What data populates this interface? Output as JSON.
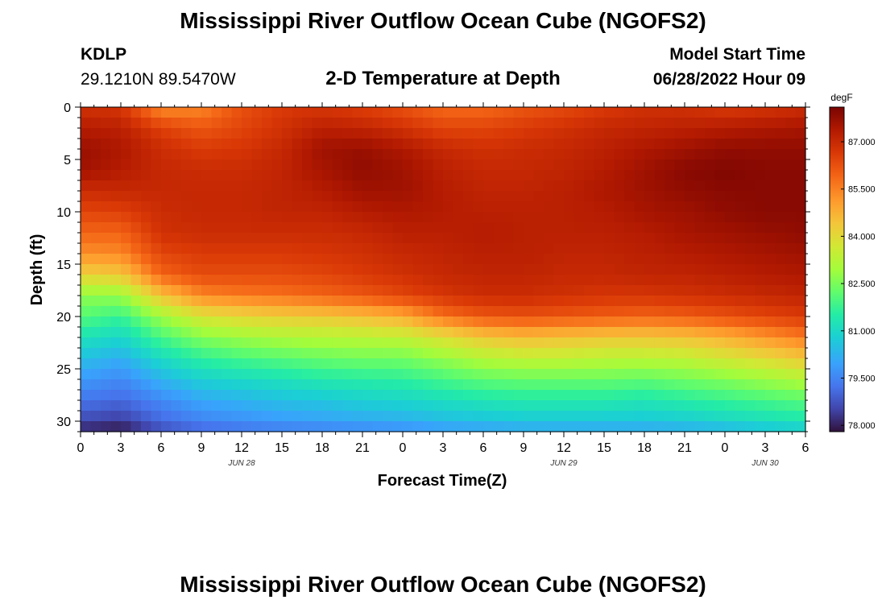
{
  "page_title": "Mississippi River Outflow Ocean Cube (NGOFS2)",
  "footer_title": "Mississippi River Outflow Ocean Cube (NGOFS2)",
  "station": {
    "name": "KDLP",
    "coords": "29.1210N  89.5470W"
  },
  "model": {
    "label": "Model Start Time",
    "value": "06/28/2022 Hour 09"
  },
  "chart_data": {
    "type": "heatmap",
    "title": "2-D Temperature at Depth",
    "xlabel": "Forecast Time(Z)",
    "ylabel": "Depth (ft)",
    "x_unit": "forecast hours from 06/28/2022 00Z",
    "xlim": [
      0,
      54
    ],
    "ylim": [
      0,
      31
    ],
    "y_inverted": true,
    "x_ticks": [
      0,
      3,
      6,
      9,
      12,
      15,
      18,
      21,
      24,
      27,
      30,
      33,
      36,
      39,
      42,
      45,
      48,
      51,
      54
    ],
    "x_tick_labels": [
      "0",
      "3",
      "6",
      "9",
      "12",
      "15",
      "18",
      "21",
      "0",
      "3",
      "6",
      "9",
      "12",
      "15",
      "18",
      "21",
      "0",
      "3",
      "6"
    ],
    "y_ticks": [
      0,
      5,
      10,
      15,
      20,
      25,
      30
    ],
    "y_tick_labels": [
      "0",
      "5",
      "10",
      "15",
      "20",
      "25",
      "30"
    ],
    "date_labels": [
      {
        "x": 12,
        "label": "JUN 28"
      },
      {
        "x": 36,
        "label": "JUN 29"
      },
      {
        "x": 51,
        "label": "JUN 30"
      }
    ],
    "colorbar": {
      "unit": "degF",
      "min": 77.8,
      "max": 88.1,
      "ticks": [
        78.0,
        79.5,
        81.0,
        82.5,
        84.0,
        85.5,
        87.0
      ],
      "tick_labels": [
        "78.000",
        "79.500",
        "81.000",
        "82.500",
        "84.000",
        "85.500",
        "87.000"
      ]
    },
    "time_hours": [
      0,
      3,
      6,
      9,
      12,
      15,
      18,
      21,
      24,
      27,
      30,
      33,
      36,
      39,
      42,
      45,
      48,
      51,
      54
    ],
    "depth_ft": [
      0,
      2,
      4,
      6,
      8,
      10,
      12,
      14,
      16,
      18,
      20,
      22,
      24,
      26,
      28,
      30,
      31
    ],
    "values": [
      [
        86.8,
        86.7,
        85.3,
        85.4,
        86.2,
        86.6,
        86.7,
        86.5,
        86.2,
        85.8,
        85.8,
        86.1,
        86.3,
        86.6,
        86.8,
        86.8,
        86.6,
        86.7,
        86.9
      ],
      [
        87.3,
        87.2,
        86.5,
        86.1,
        86.4,
        86.8,
        87.2,
        87.1,
        86.8,
        86.4,
        86.4,
        86.6,
        86.8,
        87.0,
        87.1,
        87.2,
        87.3,
        87.4,
        87.5
      ],
      [
        87.7,
        87.4,
        86.9,
        86.6,
        86.7,
        87.0,
        87.6,
        87.7,
        87.4,
        87.0,
        86.8,
        86.9,
        87.0,
        87.2,
        87.4,
        87.6,
        87.8,
        87.8,
        87.8
      ],
      [
        87.6,
        87.3,
        87.0,
        86.9,
        86.9,
        87.1,
        87.5,
        87.8,
        87.6,
        87.2,
        87.0,
        87.0,
        87.1,
        87.3,
        87.6,
        87.9,
        88.0,
        87.9,
        87.9
      ],
      [
        86.9,
        87.0,
        87.0,
        87.0,
        87.0,
        87.1,
        87.3,
        87.6,
        87.6,
        87.3,
        87.1,
        87.1,
        87.2,
        87.4,
        87.6,
        87.8,
        87.9,
        87.9,
        87.9
      ],
      [
        86.4,
        86.5,
        86.9,
        87.0,
        87.0,
        87.1,
        87.1,
        87.3,
        87.4,
        87.3,
        87.2,
        87.2,
        87.2,
        87.3,
        87.5,
        87.6,
        87.8,
        87.9,
        87.9
      ],
      [
        85.9,
        85.9,
        86.8,
        86.9,
        86.9,
        86.9,
        86.9,
        87.0,
        87.2,
        87.2,
        87.3,
        87.2,
        87.2,
        87.2,
        87.3,
        87.5,
        87.6,
        87.7,
        87.8
      ],
      [
        85.3,
        85.4,
        86.4,
        86.6,
        86.6,
        86.6,
        86.7,
        86.8,
        87.0,
        87.1,
        87.2,
        87.2,
        87.1,
        87.1,
        87.2,
        87.3,
        87.4,
        87.5,
        87.6
      ],
      [
        84.2,
        84.4,
        85.9,
        86.3,
        86.3,
        86.3,
        86.4,
        86.6,
        86.8,
        87.0,
        87.1,
        87.1,
        87.0,
        87.0,
        87.1,
        87.1,
        87.2,
        87.3,
        87.4
      ],
      [
        82.7,
        82.8,
        84.5,
        85.4,
        85.6,
        85.7,
        85.9,
        86.1,
        86.4,
        86.7,
        86.9,
        86.9,
        86.8,
        86.7,
        86.7,
        86.8,
        86.9,
        87.0,
        87.1
      ],
      [
        82.1,
        81.7,
        82.9,
        83.8,
        84.1,
        84.3,
        84.4,
        84.6,
        84.9,
        85.7,
        86.1,
        86.2,
        86.1,
        86.0,
        85.9,
        86.0,
        86.2,
        86.4,
        86.6
      ],
      [
        81.2,
        80.9,
        81.9,
        82.6,
        82.9,
        83.1,
        83.2,
        83.3,
        83.4,
        83.9,
        84.4,
        84.6,
        84.5,
        84.4,
        84.4,
        84.5,
        84.8,
        85.2,
        85.6
      ],
      [
        80.5,
        80.2,
        81.0,
        81.6,
        81.9,
        82.1,
        82.3,
        82.4,
        82.4,
        82.8,
        83.2,
        83.4,
        83.4,
        83.3,
        83.3,
        83.4,
        83.7,
        84.0,
        84.4
      ],
      [
        79.9,
        79.6,
        80.3,
        80.8,
        81.0,
        81.2,
        81.4,
        81.5,
        81.6,
        81.9,
        82.2,
        82.3,
        82.3,
        82.3,
        82.2,
        82.4,
        82.6,
        82.9,
        83.2
      ],
      [
        79.3,
        79.1,
        79.6,
        80.1,
        80.3,
        80.5,
        80.6,
        80.8,
        80.9,
        81.1,
        81.3,
        81.4,
        81.4,
        81.4,
        81.3,
        81.5,
        81.7,
        81.9,
        82.1
      ],
      [
        78.6,
        78.4,
        79.1,
        79.5,
        79.7,
        79.9,
        80.0,
        80.1,
        80.2,
        80.4,
        80.5,
        80.6,
        80.6,
        80.6,
        80.6,
        80.7,
        80.9,
        81.1,
        81.3
      ],
      [
        78.0,
        77.8,
        78.6,
        79.0,
        79.2,
        79.3,
        79.4,
        79.5,
        79.6,
        79.8,
        79.9,
        80.0,
        80.0,
        80.0,
        80.0,
        80.1,
        80.2,
        80.4,
        80.6
      ]
    ]
  }
}
